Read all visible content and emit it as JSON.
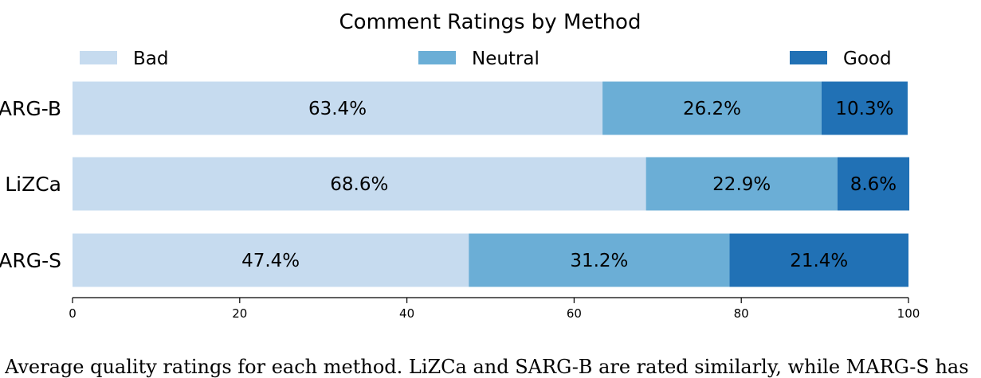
{
  "chart_data": {
    "type": "bar",
    "orientation": "horizontal",
    "stacked": true,
    "title": "Comment Ratings by Method",
    "categories": [
      "SARG-B",
      "LiZCa",
      "SARG-S"
    ],
    "series": [
      {
        "name": "Bad",
        "values": [
          63.4,
          68.6,
          47.4
        ],
        "labels": [
          "63.4%",
          "68.6%",
          "47.4%"
        ],
        "color": "#c6dbef"
      },
      {
        "name": "Neutral",
        "values": [
          26.2,
          22.9,
          31.2
        ],
        "labels": [
          "26.2%",
          "22.9%",
          "31.2%"
        ],
        "color": "#6baed6"
      },
      {
        "name": "Good",
        "values": [
          10.3,
          8.6,
          21.4
        ],
        "labels": [
          "10.3%",
          "8.6%",
          "21.4%"
        ],
        "color": "#2171b5"
      }
    ],
    "xlim": [
      0,
      100
    ],
    "xticks": [
      0,
      20,
      40,
      60,
      80,
      100
    ],
    "xlabel": "",
    "ylabel": "",
    "grid": false,
    "legend_position": "top"
  },
  "caption": "Average quality ratings for each method. LiZCa and SARG-B are rated similarly, while MARG-S has"
}
